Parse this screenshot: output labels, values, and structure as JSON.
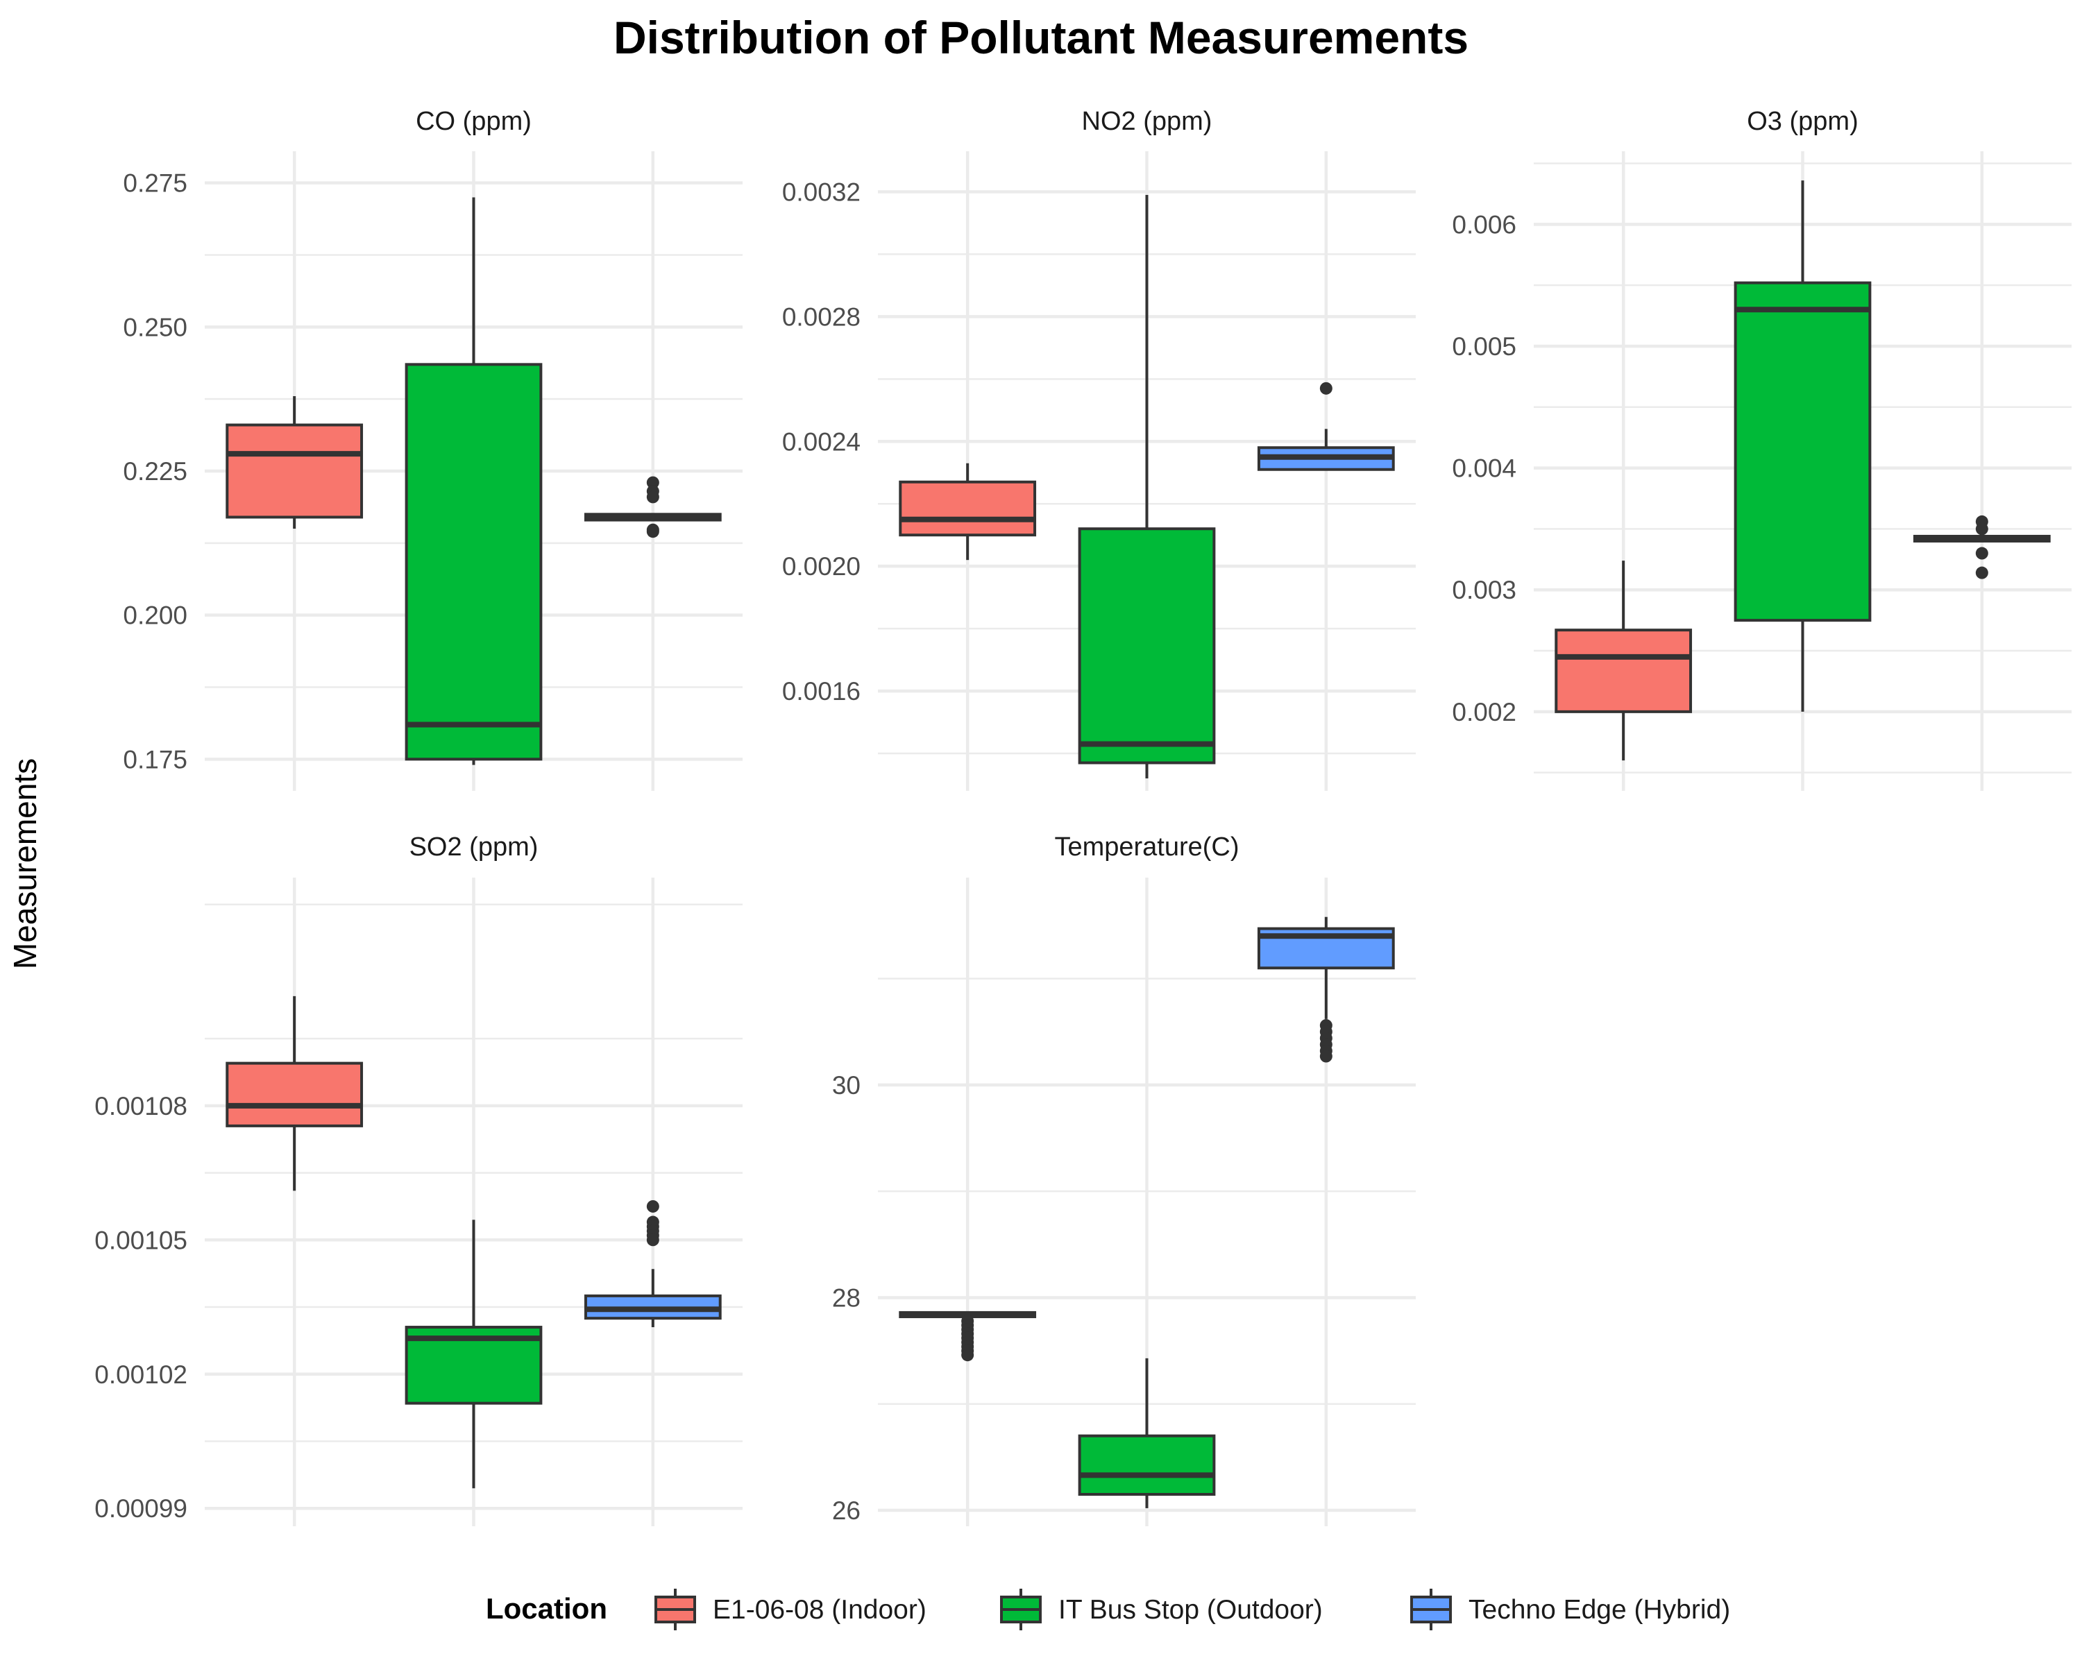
{
  "title": "Distribution of Pollutant Measurements",
  "ylabel": "Measurements",
  "legend": {
    "title": "Location",
    "items": [
      {
        "label": "E1-06-08 (Indoor)",
        "color": "#F8766D"
      },
      {
        "label": "IT Bus Stop (Outdoor)",
        "color": "#00BA38"
      },
      {
        "label": "Techno Edge (Hybrid)",
        "color": "#619CFF"
      }
    ]
  },
  "chart_data": [
    {
      "type": "boxplot",
      "panel": "CO (ppm)",
      "ylim": [
        0.1695,
        0.2805
      ],
      "ticks": [
        0.175,
        0.2,
        0.225,
        0.25,
        0.275
      ],
      "tick_labels": [
        "0.175",
        "0.200",
        "0.225",
        "0.250",
        "0.275"
      ],
      "boxes": [
        {
          "location": "E1-06-08 (Indoor)",
          "whisker_low": 0.215,
          "q1": 0.217,
          "median": 0.228,
          "q3": 0.233,
          "whisker_high": 0.238,
          "outliers": []
        },
        {
          "location": "IT Bus Stop (Outdoor)",
          "whisker_low": 0.174,
          "q1": 0.175,
          "median": 0.181,
          "q3": 0.2435,
          "whisker_high": 0.2725,
          "outliers": []
        },
        {
          "location": "Techno Edge (Hybrid)",
          "whisker_low": 0.2165,
          "q1": 0.2165,
          "median": 0.217,
          "q3": 0.2175,
          "whisker_high": 0.2175,
          "outliers": [
            0.223,
            0.2215,
            0.2205,
            0.2148,
            0.2145
          ]
        }
      ]
    },
    {
      "type": "boxplot",
      "panel": "NO2 (ppm)",
      "ylim": [
        0.00128,
        0.00333
      ],
      "ticks": [
        0.0016,
        0.002,
        0.0024,
        0.0028,
        0.0032
      ],
      "tick_labels": [
        "0.0016",
        "0.0020",
        "0.0024",
        "0.0028",
        "0.0032"
      ],
      "boxes": [
        {
          "location": "E1-06-08 (Indoor)",
          "whisker_low": 0.00202,
          "q1": 0.0021,
          "median": 0.00215,
          "q3": 0.00227,
          "whisker_high": 0.00233,
          "outliers": []
        },
        {
          "location": "IT Bus Stop (Outdoor)",
          "whisker_low": 0.00132,
          "q1": 0.00137,
          "median": 0.00143,
          "q3": 0.00212,
          "whisker_high": 0.00319,
          "outliers": []
        },
        {
          "location": "Techno Edge (Hybrid)",
          "whisker_low": 0.00231,
          "q1": 0.00231,
          "median": 0.00235,
          "q3": 0.00238,
          "whisker_high": 0.00244,
          "outliers": [
            0.00257
          ]
        }
      ]
    },
    {
      "type": "boxplot",
      "panel": "O3 (ppm)",
      "ylim": [
        0.00135,
        0.0066
      ],
      "ticks": [
        0.002,
        0.003,
        0.004,
        0.005,
        0.006
      ],
      "tick_labels": [
        "0.002",
        "0.003",
        "0.004",
        "0.005",
        "0.006"
      ],
      "boxes": [
        {
          "location": "E1-06-08 (Indoor)",
          "whisker_low": 0.0016,
          "q1": 0.002,
          "median": 0.00245,
          "q3": 0.00267,
          "whisker_high": 0.00324,
          "outliers": []
        },
        {
          "location": "IT Bus Stop (Outdoor)",
          "whisker_low": 0.002,
          "q1": 0.00275,
          "median": 0.0053,
          "q3": 0.00552,
          "whisker_high": 0.00636,
          "outliers": []
        },
        {
          "location": "Techno Edge (Hybrid)",
          "whisker_low": 0.0034,
          "q1": 0.0034,
          "median": 0.00342,
          "q3": 0.00344,
          "whisker_high": 0.00345,
          "outliers": [
            0.00356,
            0.0035,
            0.0033,
            0.00314
          ]
        }
      ]
    },
    {
      "type": "boxplot",
      "panel": "SO2 (ppm)",
      "ylim": [
        0.000986,
        0.001131
      ],
      "ticks": [
        0.00099,
        0.00102,
        0.00105,
        0.00108
      ],
      "tick_labels": [
        "0.00099",
        "0.00102",
        "0.00105",
        "0.00108"
      ],
      "boxes": [
        {
          "location": "E1-06-08 (Indoor)",
          "whisker_low": 0.001061,
          "q1": 0.0010755,
          "median": 0.00108,
          "q3": 0.0010895,
          "whisker_high": 0.0011045,
          "outliers": []
        },
        {
          "location": "IT Bus Stop (Outdoor)",
          "whisker_low": 0.0009945,
          "q1": 0.0010135,
          "median": 0.001028,
          "q3": 0.0010305,
          "whisker_high": 0.0010545,
          "outliers": []
        },
        {
          "location": "Techno Edge (Hybrid)",
          "whisker_low": 0.0010305,
          "q1": 0.0010325,
          "median": 0.0010345,
          "q3": 0.0010375,
          "whisker_high": 0.0010435,
          "outliers": [
            0.0010575,
            0.001054,
            0.001053,
            0.001052,
            0.001051,
            0.00105
          ]
        }
      ]
    },
    {
      "type": "boxplot",
      "panel": "Temperature(C)",
      "ylim": [
        25.85,
        31.95
      ],
      "ticks": [
        26,
        28,
        30
      ],
      "tick_labels": [
        "26",
        "28",
        "30"
      ],
      "boxes": [
        {
          "location": "E1-06-08 (Indoor)",
          "whisker_low": 27.82,
          "q1": 27.82,
          "median": 27.84,
          "q3": 27.86,
          "whisker_high": 27.86,
          "outliers": [
            27.78,
            27.74,
            27.7,
            27.66,
            27.62,
            27.58,
            27.54,
            27.5,
            27.46
          ]
        },
        {
          "location": "IT Bus Stop (Outdoor)",
          "whisker_low": 26.02,
          "q1": 26.15,
          "median": 26.33,
          "q3": 26.7,
          "whisker_high": 27.43,
          "outliers": []
        },
        {
          "location": "Techno Edge (Hybrid)",
          "whisker_low": 30.62,
          "q1": 31.1,
          "median": 31.4,
          "q3": 31.47,
          "whisker_high": 31.58,
          "outliers": [
            30.56,
            30.5,
            30.44,
            30.38,
            30.32,
            30.27
          ]
        }
      ]
    }
  ]
}
